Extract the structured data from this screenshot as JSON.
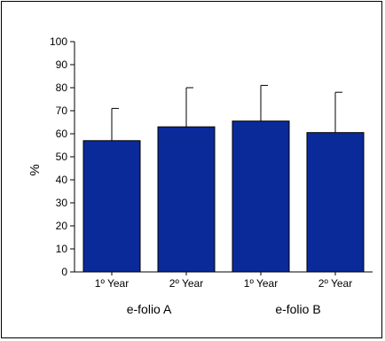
{
  "chart_data": {
    "type": "bar",
    "title": "",
    "xlabel": "",
    "ylabel": "%",
    "ylim": [
      0,
      100
    ],
    "yticks": [
      "0",
      "10",
      "20",
      "30",
      "40",
      "50",
      "60",
      "70",
      "80",
      "90",
      "100"
    ],
    "categories": [
      "1º Year",
      "2º Year",
      "1º Year",
      "2º Year"
    ],
    "groups": [
      {
        "label": "e-folio A",
        "categories": [
          0,
          1
        ]
      },
      {
        "label": "e-folio B",
        "categories": [
          2,
          3
        ]
      }
    ],
    "values": [
      57,
      63,
      65.5,
      60.5
    ],
    "error_upper": [
      71,
      80,
      81,
      78
    ],
    "bar_color": "#0a2a9a",
    "grid": false,
    "legend": "none"
  }
}
